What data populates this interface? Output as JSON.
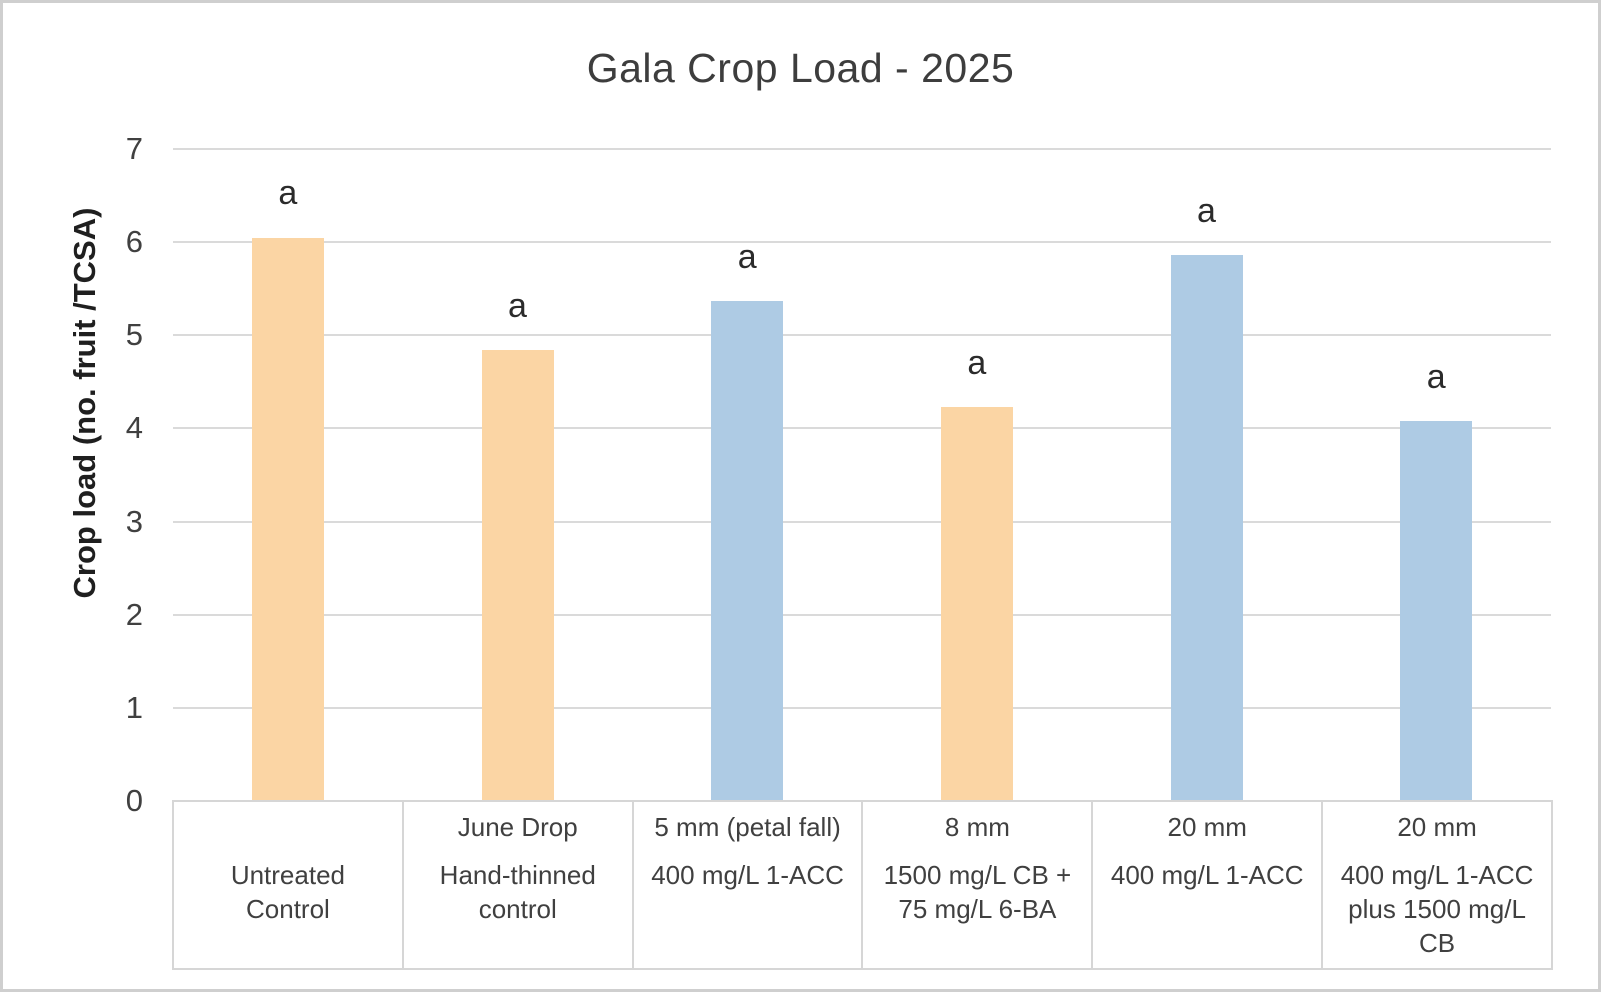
{
  "chart_data": {
    "type": "bar",
    "title": "Gala Crop Load - 2025",
    "ylabel": "Crop load (no. fruit /TCSA)",
    "xlabel": "",
    "ylim": [
      0,
      7
    ],
    "yticks": [
      0,
      1,
      2,
      3,
      4,
      5,
      6,
      7
    ],
    "grid": true,
    "legend_position": "none",
    "categories": [
      {
        "timing": "",
        "treatment": "Untreated\nControl"
      },
      {
        "timing": "June Drop",
        "treatment": "Hand-thinned\ncontrol"
      },
      {
        "timing": "5 mm (petal fall)",
        "treatment": "400 mg/L 1-ACC"
      },
      {
        "timing": "8 mm",
        "treatment": "1500 mg/L CB +\n75 mg/L 6-BA"
      },
      {
        "timing": "20 mm",
        "treatment": "400 mg/L 1-ACC"
      },
      {
        "timing": "20 mm",
        "treatment": "400 mg/L 1-ACC\nplus 1500 mg/L\nCB"
      }
    ],
    "values": [
      6.05,
      4.84,
      5.37,
      4.23,
      5.86,
      4.08
    ],
    "bar_colors": [
      "#FBD5A4",
      "#FBD5A4",
      "#AECBE4",
      "#FBD5A4",
      "#AECBE4",
      "#AECBE4"
    ],
    "significance_letters": [
      "a",
      "a",
      "a",
      "a",
      "a",
      "a"
    ],
    "colors": {
      "orange_bar": "#FBD5A4",
      "blue_bar": "#AECBE4",
      "gridline": "#DADADA",
      "axis_table_border": "#D6D6D6",
      "text": "#404040",
      "frame_border": "#CFCFCF"
    }
  }
}
